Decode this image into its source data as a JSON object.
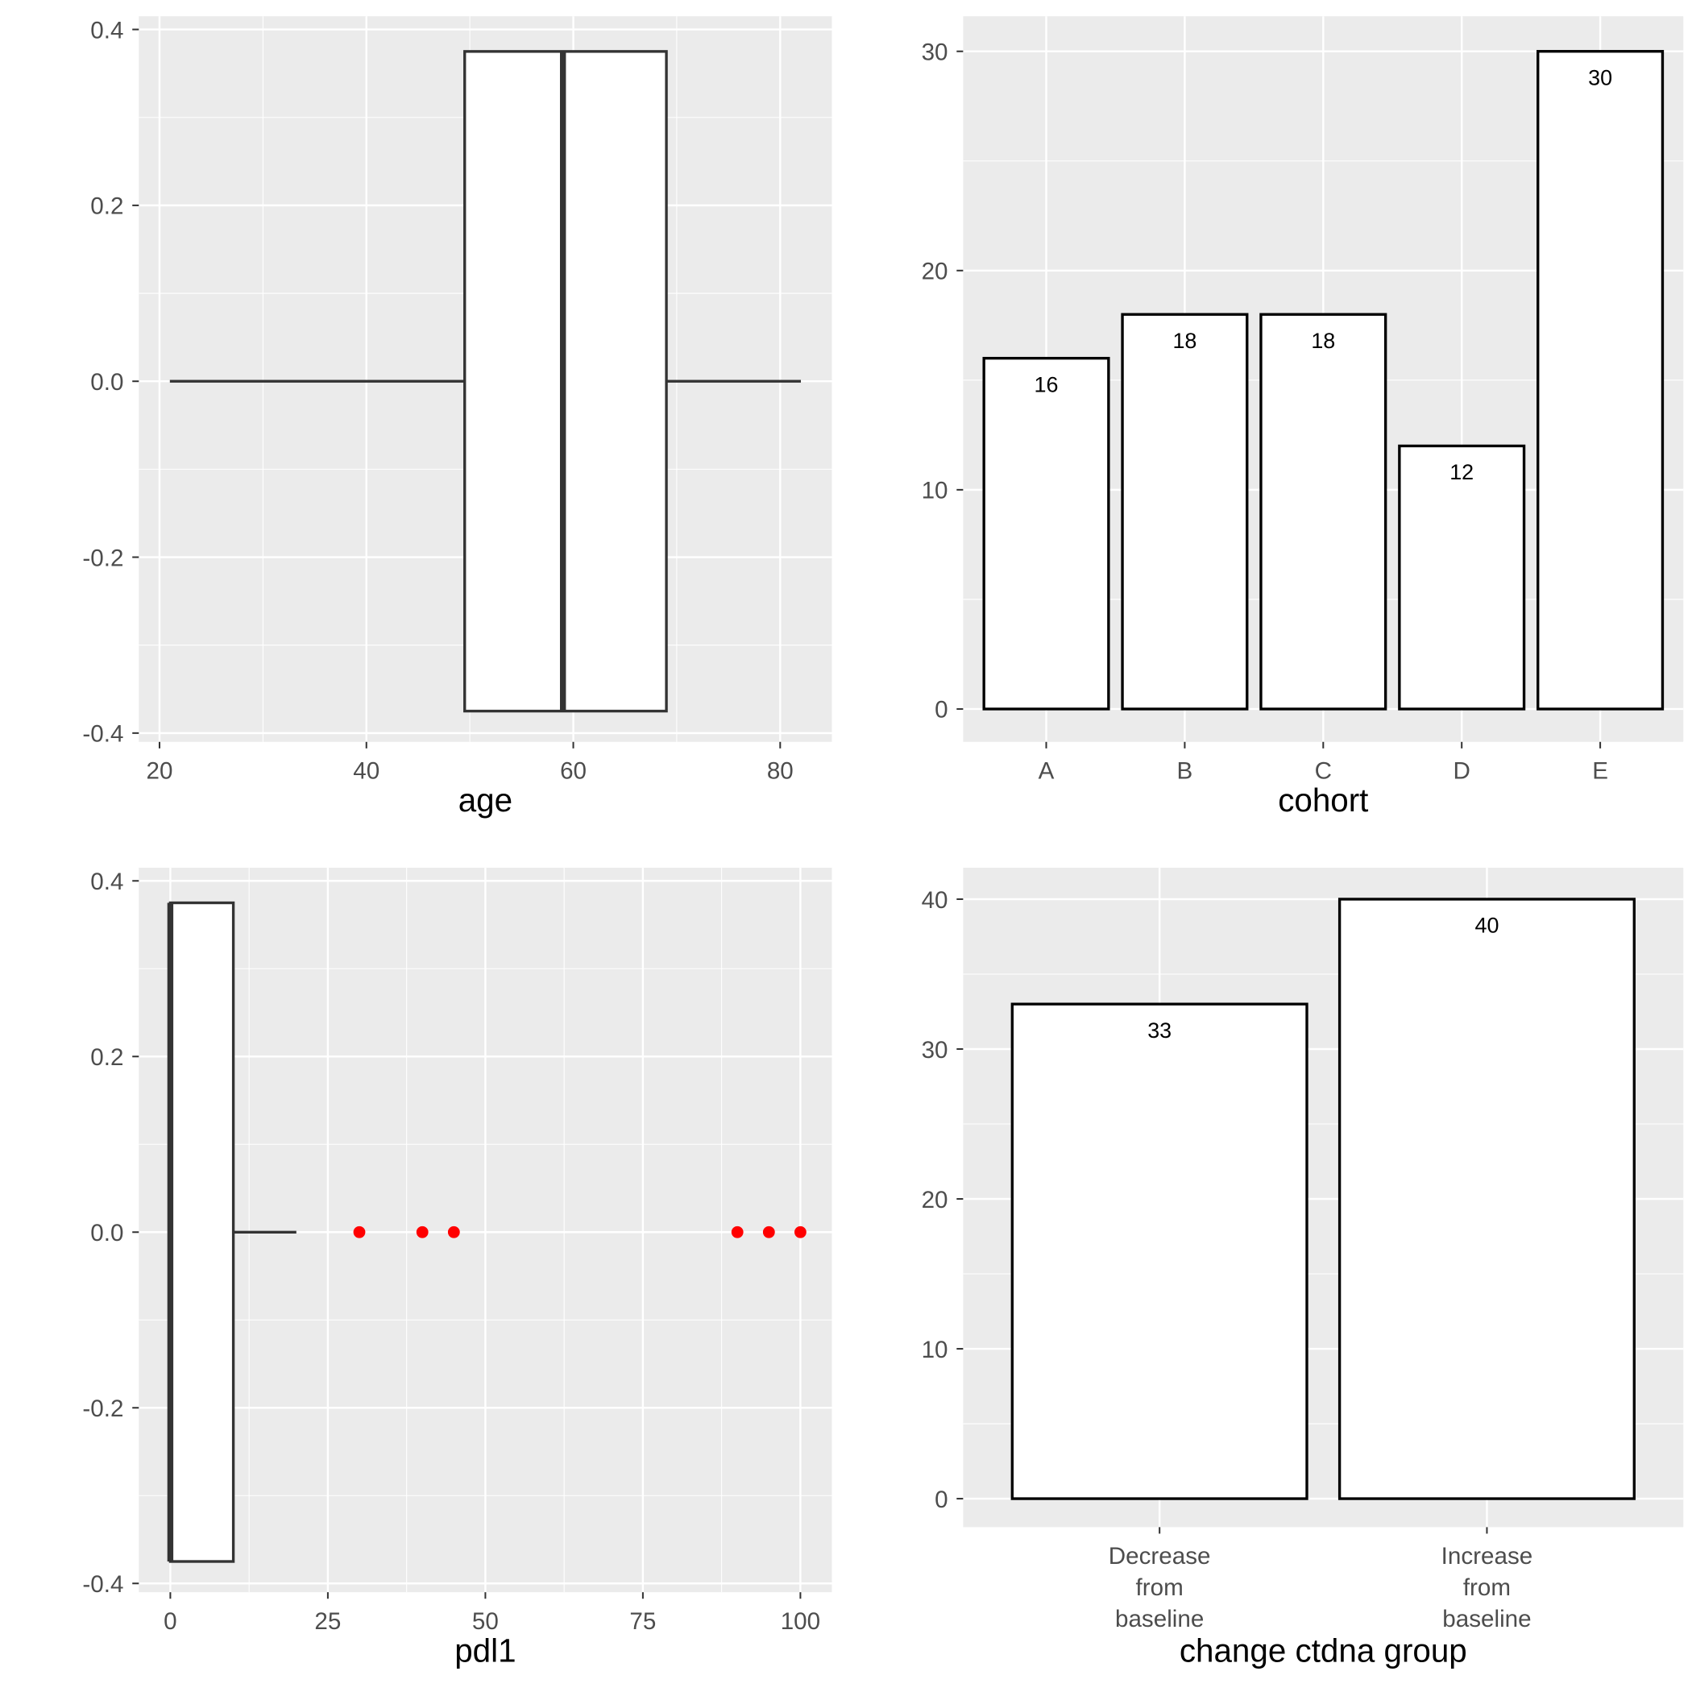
{
  "chart_data": [
    {
      "type": "boxplot",
      "xlabel": "age",
      "xlim": [
        18,
        85
      ],
      "ylim": [
        -0.41,
        0.415
      ],
      "xticks": [
        20,
        40,
        60,
        80
      ],
      "xminor": [
        30,
        50,
        70
      ],
      "yticks": [
        -0.4,
        -0.2,
        0.0,
        0.2,
        0.4
      ],
      "ytick_labels": [
        "-0.4",
        "-0.2",
        "0.0",
        "0.2",
        "0.4"
      ],
      "yminor": [
        -0.3,
        -0.1,
        0.1,
        0.3
      ],
      "box": {
        "whisker_low": 21,
        "q1": 49.5,
        "median": 59,
        "q3": 69,
        "whisker_high": 82,
        "ymin": -0.375,
        "ymax": 0.375
      },
      "outliers": [],
      "outlier_color": "#FF0000",
      "grid": true
    },
    {
      "type": "bar",
      "xlabel": "cohort",
      "categories": [
        "A",
        "B",
        "C",
        "D",
        "E"
      ],
      "values": [
        16,
        18,
        18,
        12,
        30
      ],
      "value_labels": [
        "16",
        "18",
        "18",
        "12",
        "30"
      ],
      "ylim": [
        -1.5,
        31.6
      ],
      "yticks": [
        0,
        10,
        20,
        30
      ],
      "ytick_labels": [
        "0",
        "10",
        "20",
        "30"
      ],
      "yminor": [
        5,
        15,
        25
      ],
      "grid": true
    },
    {
      "type": "boxplot",
      "xlabel": "pdl1",
      "xlim": [
        -5,
        105
      ],
      "ylim": [
        -0.41,
        0.415
      ],
      "xticks": [
        0,
        25,
        50,
        75,
        100
      ],
      "xminor": [
        12.5,
        37.5,
        62.5,
        87.5
      ],
      "yticks": [
        -0.4,
        -0.2,
        0.0,
        0.2,
        0.4
      ],
      "ytick_labels": [
        "-0.4",
        "-0.2",
        "0.0",
        "0.2",
        "0.4"
      ],
      "yminor": [
        -0.3,
        -0.1,
        0.1,
        0.3
      ],
      "box": {
        "whisker_low": 0,
        "q1": 0,
        "median": 0,
        "q3": 10,
        "whisker_high": 20,
        "ymin": -0.375,
        "ymax": 0.375
      },
      "outliers": [
        30,
        40,
        45,
        90,
        95,
        100
      ],
      "outlier_color": "#FF0000",
      "grid": true
    },
    {
      "type": "bar",
      "xlabel": "change ctdna group",
      "categories": [
        "Decrease\nfrom\nbaseline",
        "Increase\nfrom\nbaseline"
      ],
      "values": [
        33,
        40
      ],
      "value_labels": [
        "33",
        "40"
      ],
      "ylim": [
        -1.9,
        42.1
      ],
      "yticks": [
        0,
        10,
        20,
        30,
        40
      ],
      "ytick_labels": [
        "0",
        "10",
        "20",
        "30",
        "40"
      ],
      "yminor": [
        5,
        15,
        25,
        35
      ],
      "grid": true
    }
  ]
}
